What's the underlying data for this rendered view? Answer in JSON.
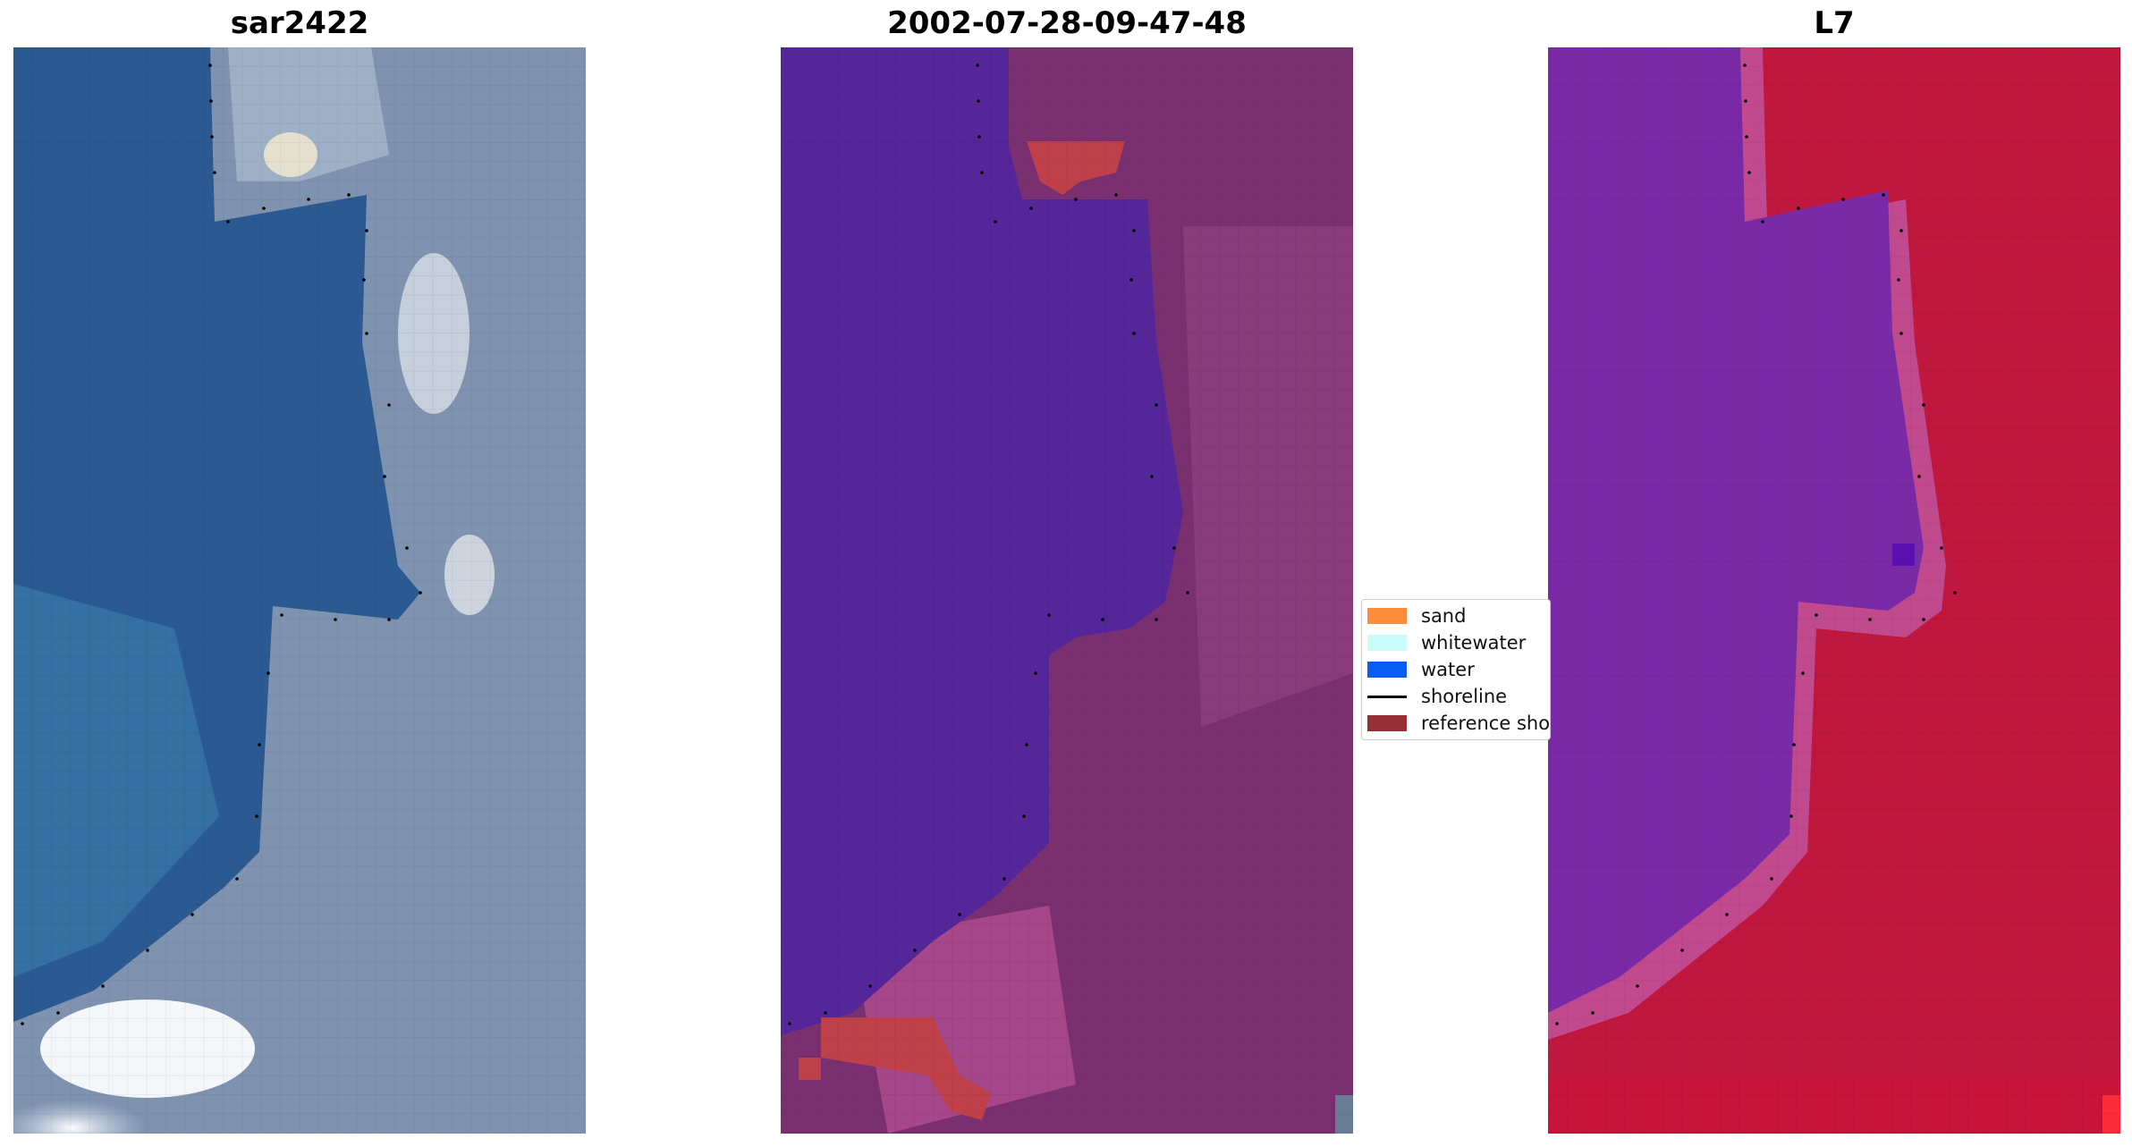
{
  "panels": [
    {
      "title": "sar2422"
    },
    {
      "title": "2002-07-28-09-47-48"
    },
    {
      "title": "L7"
    }
  ],
  "legend": {
    "items": [
      {
        "label": "sand",
        "type": "patch",
        "color": "#ff8c3a"
      },
      {
        "label": "whitewater",
        "type": "patch",
        "color": "#c9fbfb"
      },
      {
        "label": "water",
        "type": "patch",
        "color": "#0b5cf0"
      },
      {
        "label": "shoreline",
        "type": "line",
        "color": "#000000"
      },
      {
        "label": "reference sho",
        "type": "patch",
        "color": "#943036"
      }
    ]
  },
  "colors": {
    "rgb_water": "#2a5a92",
    "rgb_land": "#7b8fae",
    "class_water": "#55259a",
    "class_land": "#7a3070",
    "class_sand": "#c0404a",
    "ndwi_water": "#7a2aa6",
    "ndwi_land": "#c0173e"
  }
}
